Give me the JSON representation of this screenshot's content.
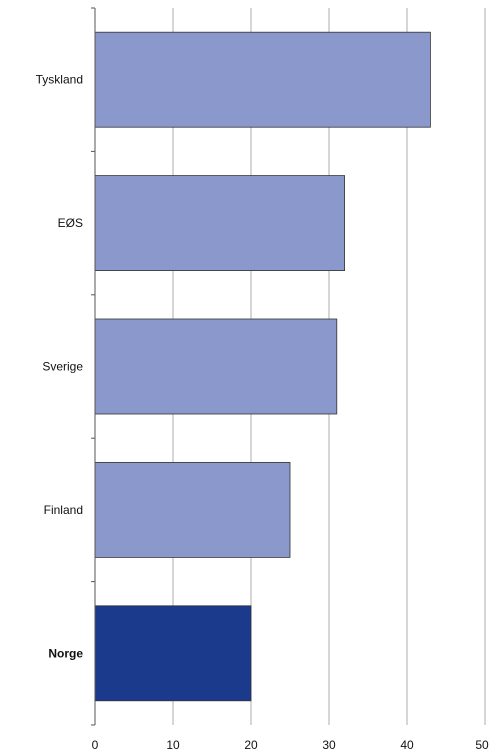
{
  "chart_data": {
    "type": "bar",
    "orientation": "horizontal",
    "categories": [
      "Tyskland",
      "EØS",
      "Sverige",
      "Finland",
      "Norge"
    ],
    "values": [
      43,
      32,
      31,
      25,
      20
    ],
    "highlight": "Norge",
    "xlim": [
      0,
      50
    ],
    "xticks": [
      "0",
      "10",
      "20",
      "30",
      "40",
      "50"
    ],
    "grid": "vertical",
    "colors": {
      "bar": "#8a98cc",
      "highlight": "#1b3a8c",
      "grid": "#9a9a9a"
    }
  }
}
